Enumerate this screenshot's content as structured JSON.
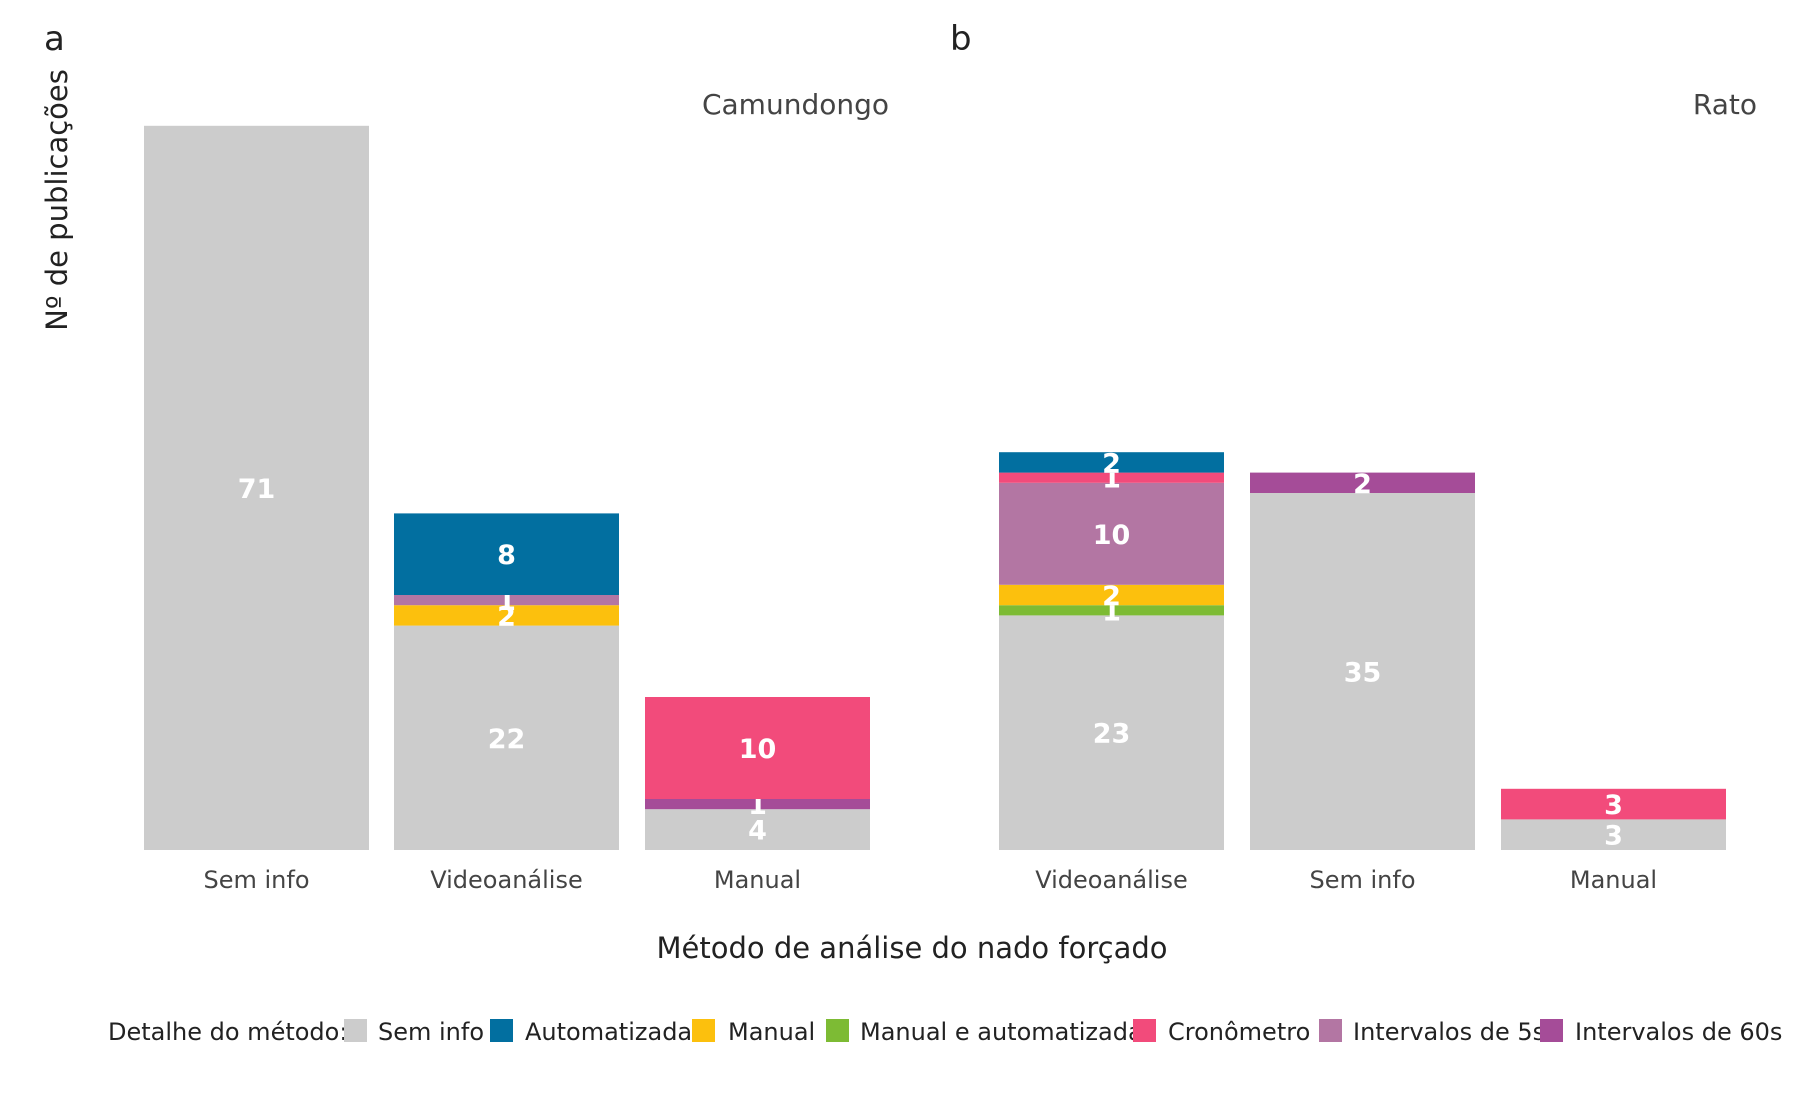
{
  "panel_letters": [
    "a",
    "b"
  ],
  "chart_data": {
    "type": "bar",
    "stacked": true,
    "ylabel": "Nº de publicações",
    "xlabel": "Método de análise do nado forçado",
    "ylim": [
      0,
      74
    ],
    "grid": false,
    "legend": {
      "title": "Detalhe do método:",
      "position": "bottom",
      "entries": [
        {
          "name": "Sem info",
          "color": "#cccccc"
        },
        {
          "name": "Automatizada",
          "color": "#026fa0"
        },
        {
          "name": "Manual",
          "color": "#fcc00d"
        },
        {
          "name": "Manual e automatizada",
          "color": "#7dbb34"
        },
        {
          "name": "Cronômetro",
          "color": "#f24b7b"
        },
        {
          "name": "Intervalos de 5s",
          "color": "#b376a3"
        },
        {
          "name": "Intervalos de 60s",
          "color": "#a54c98"
        }
      ]
    },
    "facets": [
      {
        "title": "Camundongo",
        "categories": [
          "Sem info",
          "Videoanálise",
          "Manual"
        ],
        "stacks": [
          [
            {
              "series": "Sem info",
              "value": 71
            }
          ],
          [
            {
              "series": "Sem info",
              "value": 22
            },
            {
              "series": "Manual",
              "value": 2
            },
            {
              "series": "Intervalos de 5s",
              "value": 1
            },
            {
              "series": "Automatizada",
              "value": 8
            }
          ],
          [
            {
              "series": "Sem info",
              "value": 4
            },
            {
              "series": "Intervalos de 60s",
              "value": 1
            },
            {
              "series": "Cronômetro",
              "value": 10
            }
          ]
        ]
      },
      {
        "title": "Rato",
        "categories": [
          "Videoanálise",
          "Sem info",
          "Manual"
        ],
        "stacks": [
          [
            {
              "series": "Sem info",
              "value": 23
            },
            {
              "series": "Manual e automatizada",
              "value": 1
            },
            {
              "series": "Manual",
              "value": 2
            },
            {
              "series": "Intervalos de 5s",
              "value": 10
            },
            {
              "series": "Cronômetro",
              "value": 1
            },
            {
              "series": "Automatizada",
              "value": 2
            }
          ],
          [
            {
              "series": "Sem info",
              "value": 35
            },
            {
              "series": "Intervalos de 60s",
              "value": 2
            }
          ],
          [
            {
              "series": "Sem info",
              "value": 3
            },
            {
              "series": "Cronômetro",
              "value": 3
            }
          ]
        ]
      }
    ]
  }
}
